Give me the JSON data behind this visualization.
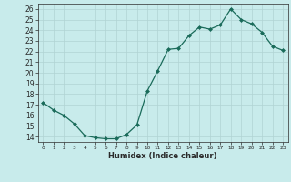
{
  "x": [
    0,
    1,
    2,
    3,
    4,
    5,
    6,
    7,
    8,
    9,
    10,
    11,
    12,
    13,
    14,
    15,
    16,
    17,
    18,
    19,
    20,
    21,
    22,
    23
  ],
  "y": [
    17.2,
    16.5,
    16.0,
    15.2,
    14.1,
    13.9,
    13.8,
    13.8,
    14.2,
    15.1,
    18.3,
    20.2,
    22.2,
    22.3,
    23.5,
    24.3,
    24.1,
    24.5,
    26.0,
    25.0,
    24.6,
    23.8,
    22.5,
    22.1
  ],
  "xlabel": "Humidex (Indice chaleur)",
  "ylim": [
    13.5,
    26.5
  ],
  "xlim": [
    -0.5,
    23.5
  ],
  "yticks": [
    14,
    15,
    16,
    17,
    18,
    19,
    20,
    21,
    22,
    23,
    24,
    25,
    26
  ],
  "xticks": [
    0,
    1,
    2,
    3,
    4,
    5,
    6,
    7,
    8,
    9,
    10,
    11,
    12,
    13,
    14,
    15,
    16,
    17,
    18,
    19,
    20,
    21,
    22,
    23
  ],
  "line_color": "#1a6b5a",
  "marker_color": "#1a6b5a",
  "bg_color": "#c8ebeb",
  "grid_color": "#b0d4d4",
  "tick_color": "#2a2a2a",
  "xlabel_fontsize": 6.0,
  "ytick_fontsize": 5.5,
  "xtick_fontsize": 4.2,
  "marker_size": 2.0,
  "line_width": 0.9
}
